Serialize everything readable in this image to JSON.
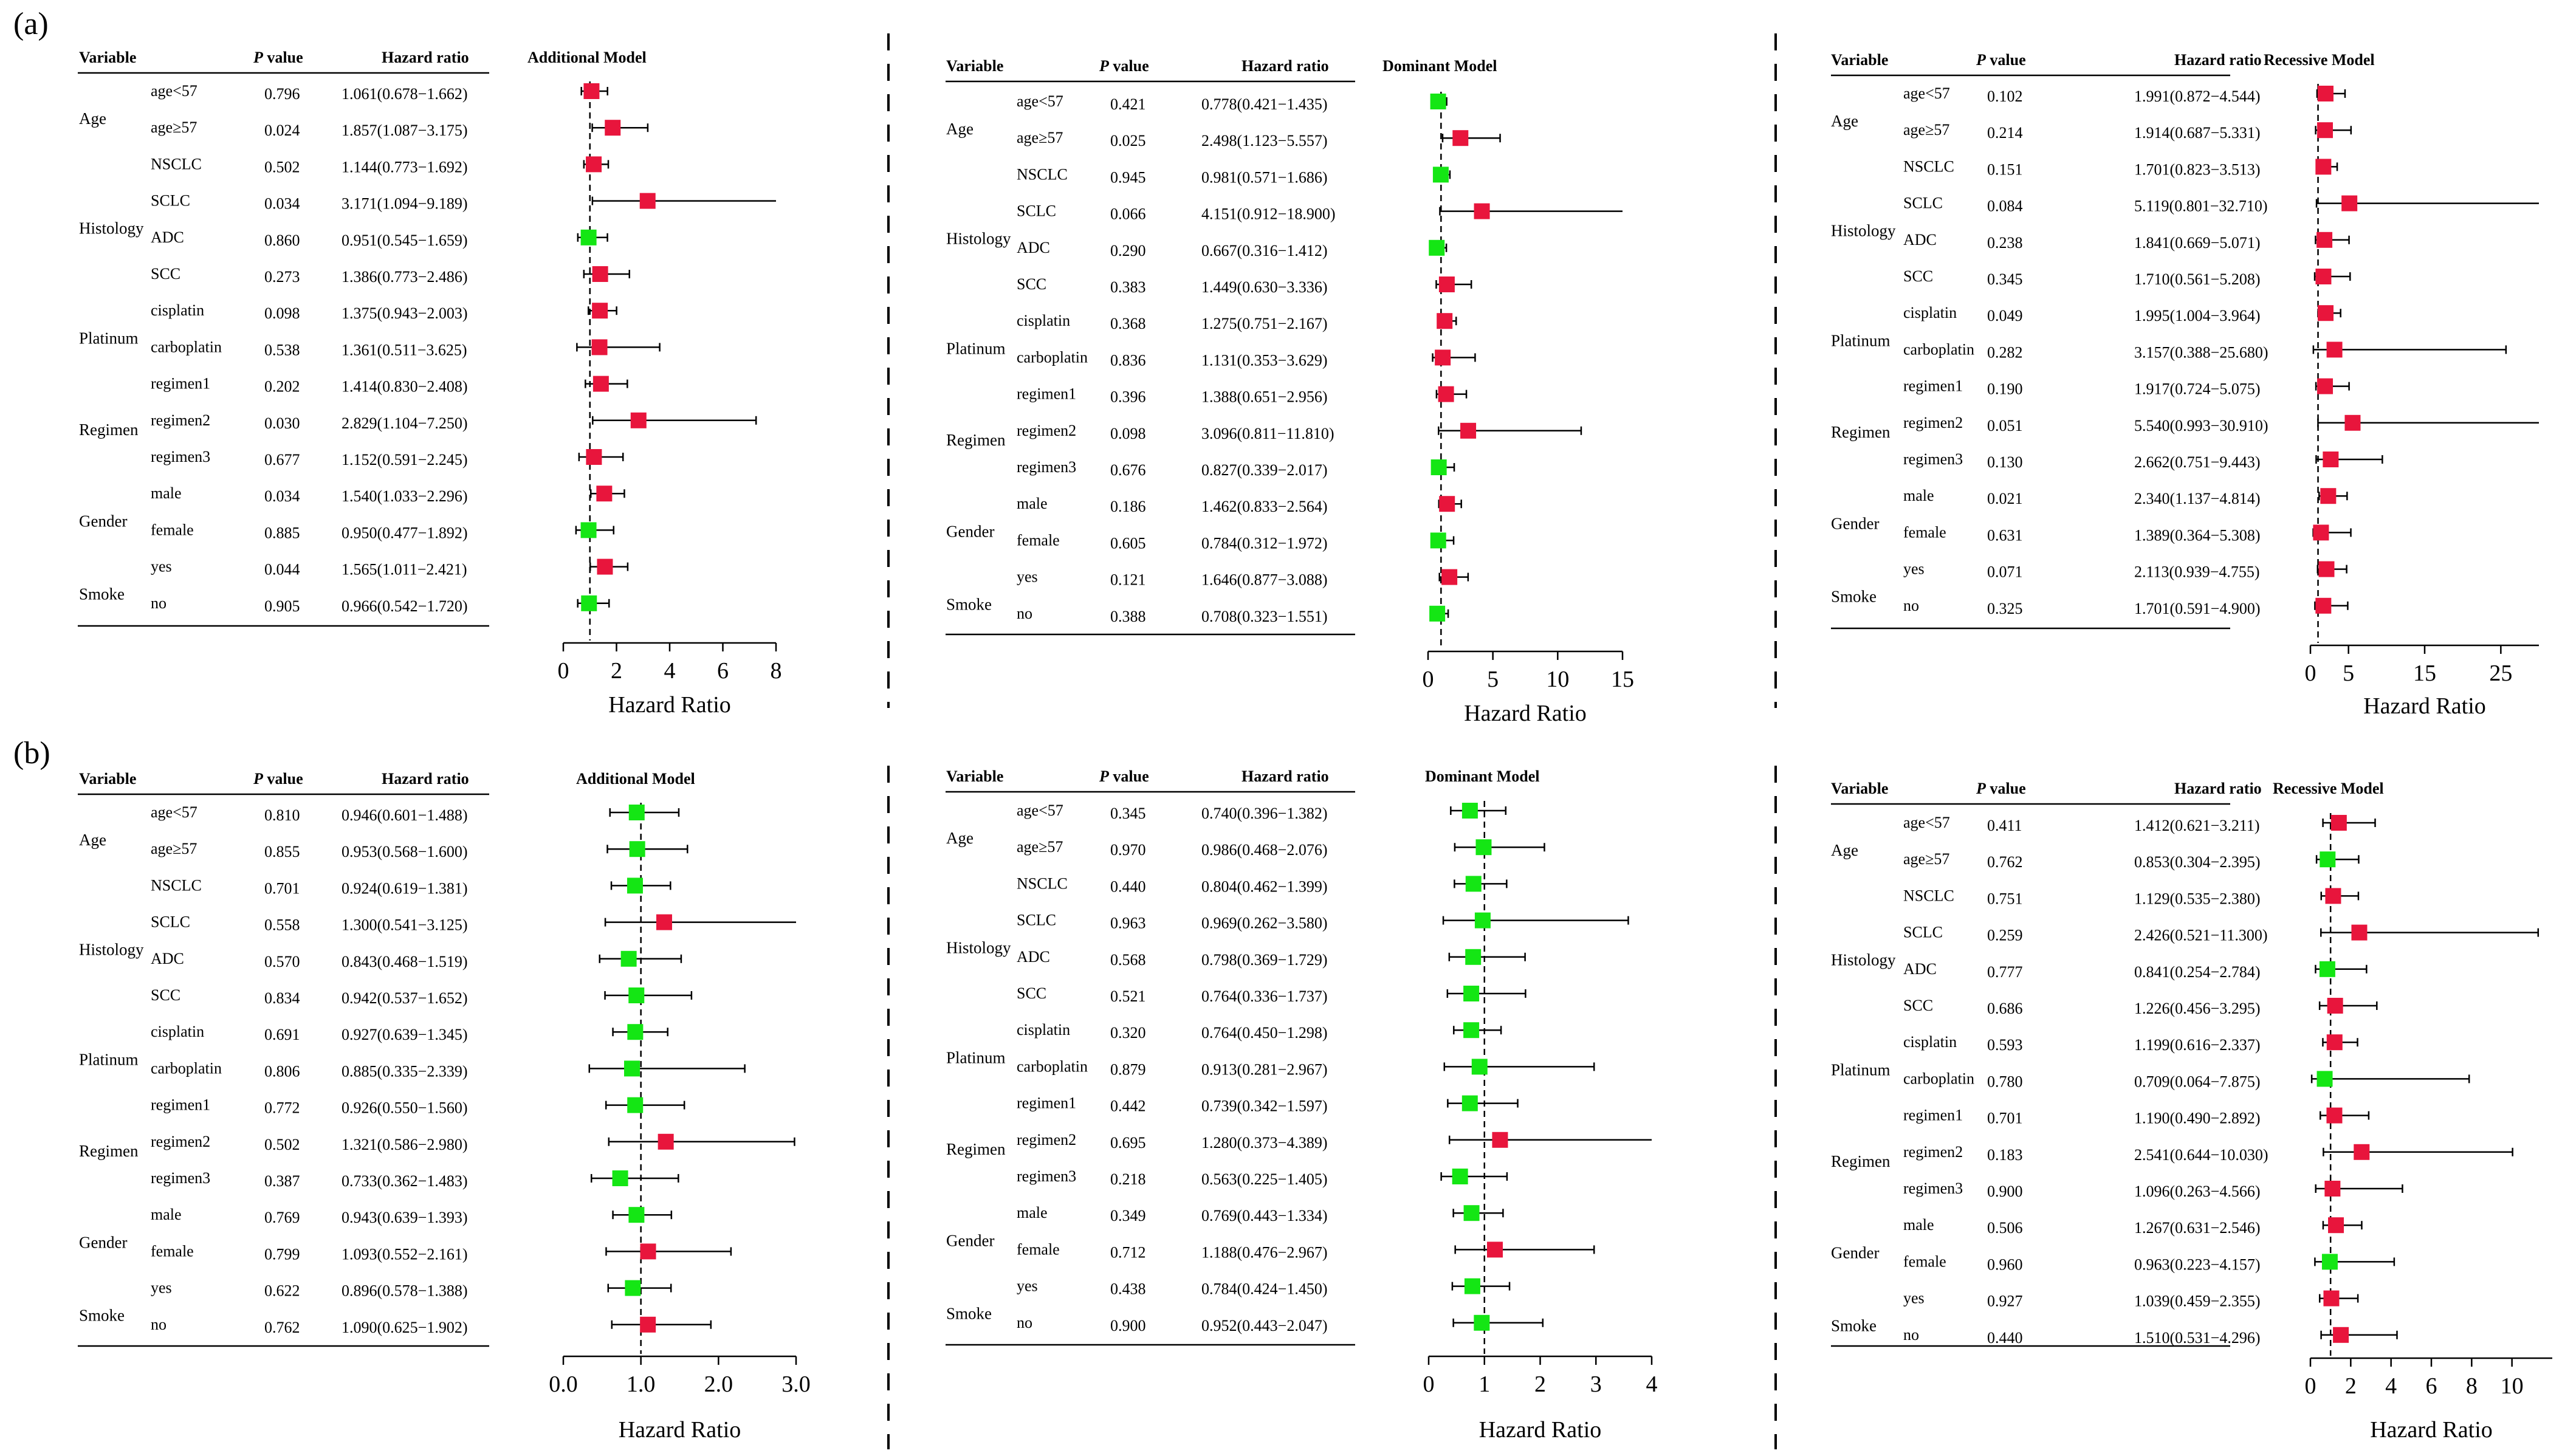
{
  "panel_labels": [
    "(a)",
    "(b)"
  ],
  "table_headers": {
    "variable": "Variable",
    "p_italic": "P",
    "p_rest": " value",
    "hr": "Hazard ratio"
  },
  "xaxis_label": "Hazard Ratio",
  "colors": {
    "significant": "#e8153c",
    "nonsignificant": "#14e614",
    "line": "#000000"
  },
  "groups": [
    {
      "name": "Age",
      "rows": [
        0,
        1
      ]
    },
    {
      "name": "Histology",
      "rows": [
        2,
        3,
        4,
        5
      ]
    },
    {
      "name": "Platinum",
      "rows": [
        6,
        7
      ]
    },
    {
      "name": "Regimen",
      "rows": [
        8,
        9,
        10
      ]
    },
    {
      "name": "Gender",
      "rows": [
        11,
        12
      ]
    },
    {
      "name": "Smoke",
      "rows": [
        13,
        14
      ]
    }
  ],
  "row_labels": [
    "age<57",
    "age≥57",
    "NSCLC",
    "SCLC",
    "ADC",
    "SCC",
    "cisplatin",
    "carboplatin",
    "regimen1",
    "regimen2",
    "regimen3",
    "male",
    "female",
    "yes",
    "no"
  ],
  "chart_data": [
    {
      "type": "forest",
      "panel": "(a)",
      "title": "Additional Model",
      "xlabel": "Hazard Ratio",
      "xlim": [
        0,
        8
      ],
      "xticks": [
        0,
        2,
        4,
        6,
        8
      ],
      "ref_line": 1,
      "p": [
        "0.796",
        "0.024",
        "0.502",
        "0.034",
        "0.860",
        "0.273",
        "0.098",
        "0.538",
        "0.202",
        "0.030",
        "0.677",
        "0.034",
        "0.885",
        "0.044",
        "0.905"
      ],
      "hr_text": [
        "1.061(0.678−1.662)",
        "1.857(1.087−3.175)",
        "1.144(0.773−1.692)",
        "3.171(1.094−9.189)",
        "0.951(0.545−1.659)",
        "1.386(0.773−2.486)",
        "1.375(0.943−2.003)",
        "1.361(0.511−3.625)",
        "1.414(0.830−2.408)",
        "2.829(1.104−7.250)",
        "1.152(0.591−2.245)",
        "1.540(1.033−2.296)",
        "0.950(0.477−1.892)",
        "1.565(1.011−2.421)",
        "0.966(0.542−1.720)"
      ],
      "hr": [
        1.061,
        1.857,
        1.144,
        3.171,
        0.951,
        1.386,
        1.375,
        1.361,
        1.414,
        2.829,
        1.152,
        1.54,
        0.95,
        1.565,
        0.966
      ],
      "lo": [
        0.678,
        1.087,
        0.773,
        1.094,
        0.545,
        0.773,
        0.943,
        0.511,
        0.83,
        1.104,
        0.591,
        1.033,
        0.477,
        1.011,
        0.542
      ],
      "hi": [
        1.662,
        3.175,
        1.692,
        9.189,
        1.659,
        2.486,
        2.003,
        3.625,
        2.408,
        7.25,
        2.245,
        2.296,
        1.892,
        2.421,
        1.72
      ]
    },
    {
      "type": "forest",
      "panel": "(a)",
      "title": "Dominant Model",
      "xlabel": "Hazard Ratio",
      "xlim": [
        0,
        15
      ],
      "xticks": [
        0,
        5,
        10,
        15
      ],
      "ref_line": 1,
      "p": [
        "0.421",
        "0.025",
        "0.945",
        "0.066",
        "0.290",
        "0.383",
        "0.368",
        "0.836",
        "0.396",
        "0.098",
        "0.676",
        "0.186",
        "0.605",
        "0.121",
        "0.388"
      ],
      "hr_text": [
        "0.778(0.421−1.435)",
        "2.498(1.123−5.557)",
        "0.981(0.571−1.686)",
        "4.151(0.912−18.900)",
        "0.667(0.316−1.412)",
        "1.449(0.630−3.336)",
        "1.275(0.751−2.167)",
        "1.131(0.353−3.629)",
        "1.388(0.651−2.956)",
        "3.096(0.811−11.810)",
        "0.827(0.339−2.017)",
        "1.462(0.833−2.564)",
        "0.784(0.312−1.972)",
        "1.646(0.877−3.088)",
        "0.708(0.323−1.551)"
      ],
      "hr": [
        0.778,
        2.498,
        0.981,
        4.151,
        0.667,
        1.449,
        1.275,
        1.131,
        1.388,
        3.096,
        0.827,
        1.462,
        0.784,
        1.646,
        0.708
      ],
      "lo": [
        0.421,
        1.123,
        0.571,
        0.912,
        0.316,
        0.63,
        0.751,
        0.353,
        0.651,
        0.811,
        0.339,
        0.833,
        0.312,
        0.877,
        0.323
      ],
      "hi": [
        1.435,
        5.557,
        1.686,
        18.9,
        1.412,
        3.336,
        2.167,
        3.629,
        2.956,
        11.81,
        2.017,
        2.564,
        1.972,
        3.088,
        1.551
      ]
    },
    {
      "type": "forest",
      "panel": "(a)",
      "title": "Recessive Model",
      "xlabel": "Hazard Ratio",
      "xlim": [
        0,
        30
      ],
      "xticks": [
        0,
        5,
        15,
        25
      ],
      "ref_line": 1,
      "p": [
        "0.102",
        "0.214",
        "0.151",
        "0.084",
        "0.238",
        "0.345",
        "0.049",
        "0.282",
        "0.190",
        "0.051",
        "0.130",
        "0.021",
        "0.631",
        "0.071",
        "0.325"
      ],
      "hr_text": [
        "1.991(0.872−4.544)",
        "1.914(0.687−5.331)",
        "1.701(0.823−3.513)",
        "5.119(0.801−32.710)",
        "1.841(0.669−5.071)",
        "1.710(0.561−5.208)",
        "1.995(1.004−3.964)",
        "3.157(0.388−25.680)",
        "1.917(0.724−5.075)",
        "5.540(0.993−30.910)",
        "2.662(0.751−9.443)",
        "2.340(1.137−4.814)",
        "1.389(0.364−5.308)",
        "2.113(0.939−4.755)",
        "1.701(0.591−4.900)"
      ],
      "hr": [
        1.991,
        1.914,
        1.701,
        5.119,
        1.841,
        1.71,
        1.995,
        3.157,
        1.917,
        5.54,
        2.662,
        2.34,
        1.389,
        2.113,
        1.701
      ],
      "lo": [
        0.872,
        0.687,
        0.823,
        0.801,
        0.669,
        0.561,
        1.004,
        0.388,
        0.724,
        0.993,
        0.751,
        1.137,
        0.364,
        0.939,
        0.591
      ],
      "hi": [
        4.544,
        5.331,
        3.513,
        32.71,
        5.071,
        5.208,
        3.964,
        25.68,
        5.075,
        30.91,
        9.443,
        4.814,
        5.308,
        4.755,
        4.9
      ]
    },
    {
      "type": "forest",
      "panel": "(b)",
      "title": "Additional Model",
      "xlabel": "Hazard Ratio",
      "xlim": [
        0,
        3
      ],
      "xticks": [
        0,
        1,
        2,
        3
      ],
      "xtick_labels": [
        "0.0",
        "1.0",
        "2.0",
        "3.0"
      ],
      "ref_line": 1,
      "p": [
        "0.810",
        "0.855",
        "0.701",
        "0.558",
        "0.570",
        "0.834",
        "0.691",
        "0.806",
        "0.772",
        "0.502",
        "0.387",
        "0.769",
        "0.799",
        "0.622",
        "0.762"
      ],
      "hr_text": [
        "0.946(0.601−1.488)",
        "0.953(0.568−1.600)",
        "0.924(0.619−1.381)",
        "1.300(0.541−3.125)",
        "0.843(0.468−1.519)",
        "0.942(0.537−1.652)",
        "0.927(0.639−1.345)",
        "0.885(0.335−2.339)",
        "0.926(0.550−1.560)",
        "1.321(0.586−2.980)",
        "0.733(0.362−1.483)",
        "0.943(0.639−1.393)",
        "1.093(0.552−2.161)",
        "0.896(0.578−1.388)",
        "1.090(0.625−1.902)"
      ],
      "hr": [
        0.946,
        0.953,
        0.924,
        1.3,
        0.843,
        0.942,
        0.927,
        0.885,
        0.926,
        1.321,
        0.733,
        0.943,
        1.093,
        0.896,
        1.09
      ],
      "lo": [
        0.601,
        0.568,
        0.619,
        0.541,
        0.468,
        0.537,
        0.639,
        0.335,
        0.55,
        0.586,
        0.362,
        0.639,
        0.552,
        0.578,
        0.625
      ],
      "hi": [
        1.488,
        1.6,
        1.381,
        3.125,
        1.519,
        1.652,
        1.345,
        2.339,
        1.56,
        2.98,
        1.483,
        1.393,
        2.161,
        1.388,
        1.902
      ]
    },
    {
      "type": "forest",
      "panel": "(b)",
      "title": "Dominant Model",
      "xlabel": "Hazard Ratio",
      "xlim": [
        0,
        4
      ],
      "xticks": [
        0,
        1,
        2,
        3,
        4
      ],
      "ref_line": 1,
      "p": [
        "0.345",
        "0.970",
        "0.440",
        "0.963",
        "0.568",
        "0.521",
        "0.320",
        "0.879",
        "0.442",
        "0.695",
        "0.218",
        "0.349",
        "0.712",
        "0.438",
        "0.900"
      ],
      "hr_text": [
        "0.740(0.396−1.382)",
        "0.986(0.468−2.076)",
        "0.804(0.462−1.399)",
        "0.969(0.262−3.580)",
        "0.798(0.369−1.729)",
        "0.764(0.336−1.737)",
        "0.764(0.450−1.298)",
        "0.913(0.281−2.967)",
        "0.739(0.342−1.597)",
        "1.280(0.373−4.389)",
        "0.563(0.225−1.405)",
        "0.769(0.443−1.334)",
        "1.188(0.476−2.967)",
        "0.784(0.424−1.450)",
        "0.952(0.443−2.047)"
      ],
      "hr": [
        0.74,
        0.986,
        0.804,
        0.969,
        0.798,
        0.764,
        0.764,
        0.913,
        0.739,
        1.28,
        0.563,
        0.769,
        1.188,
        0.784,
        0.952
      ],
      "lo": [
        0.396,
        0.468,
        0.462,
        0.262,
        0.369,
        0.336,
        0.45,
        0.281,
        0.342,
        0.373,
        0.225,
        0.443,
        0.476,
        0.424,
        0.443
      ],
      "hi": [
        1.382,
        2.076,
        1.399,
        3.58,
        1.729,
        1.737,
        1.298,
        2.967,
        1.597,
        4.389,
        1.405,
        1.334,
        2.967,
        1.45,
        2.047
      ]
    },
    {
      "type": "forest",
      "panel": "(b)",
      "title": "Recessive Model",
      "xlabel": "Hazard Ratio",
      "xlim": [
        0,
        12
      ],
      "xticks": [
        0,
        2,
        4,
        6,
        8,
        10
      ],
      "ref_line": 1,
      "p": [
        "0.411",
        "0.762",
        "0.751",
        "0.259",
        "0.777",
        "0.686",
        "0.593",
        "0.780",
        "0.701",
        "0.183",
        "0.900",
        "0.506",
        "0.960",
        "0.927",
        "0.440"
      ],
      "hr_text": [
        "1.412(0.621−3.211)",
        "0.853(0.304−2.395)",
        "1.129(0.535−2.380)",
        "2.426(0.521−11.300)",
        "0.841(0.254−2.784)",
        "1.226(0.456−3.295)",
        "1.199(0.616−2.337)",
        "0.709(0.064−7.875)",
        "1.190(0.490−2.892)",
        "2.541(0.644−10.030)",
        "1.096(0.263−4.566)",
        "1.267(0.631−2.546)",
        "0.963(0.223−4.157)",
        "1.039(0.459−2.355)",
        "1.510(0.531−4.296)"
      ],
      "hr": [
        1.412,
        0.853,
        1.129,
        2.426,
        0.841,
        1.226,
        1.199,
        0.709,
        1.19,
        2.541,
        1.096,
        1.267,
        0.963,
        1.039,
        1.51
      ],
      "lo": [
        0.621,
        0.304,
        0.535,
        0.521,
        0.254,
        0.456,
        0.616,
        0.064,
        0.49,
        0.644,
        0.263,
        0.631,
        0.223,
        0.459,
        0.531
      ],
      "hi": [
        3.211,
        2.395,
        2.38,
        11.3,
        2.784,
        3.295,
        2.337,
        7.875,
        2.892,
        10.03,
        4.566,
        2.546,
        4.157,
        2.355,
        4.296
      ]
    }
  ]
}
